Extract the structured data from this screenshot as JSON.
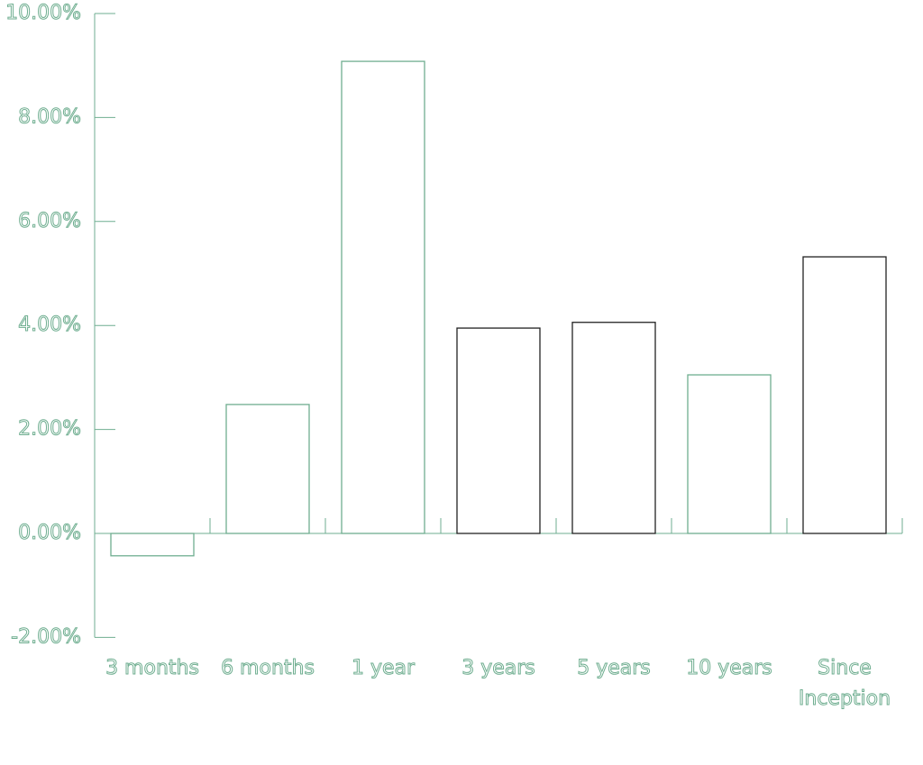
{
  "chart_data": {
    "type": "bar",
    "categories": [
      "3 months",
      "6 months",
      "1 year",
      "3 years",
      "5 years",
      "10 years",
      "Since Inception"
    ],
    "values": [
      -0.43,
      2.48,
      9.08,
      3.95,
      4.06,
      3.05,
      5.32
    ],
    "colors": [
      "#6fae90",
      "#6fae90",
      "#6fae90",
      "#222222",
      "#222222",
      "#6fae90",
      "#222222"
    ],
    "axis_color": "#6fae90",
    "ylim": [
      -2,
      10
    ],
    "yticks": [
      {
        "value": -2,
        "label": "-2.00%"
      },
      {
        "value": 0,
        "label": "0.00%"
      },
      {
        "value": 2,
        "label": "2.00%"
      },
      {
        "value": 4,
        "label": "4.00%"
      },
      {
        "value": 6,
        "label": "6.00%"
      },
      {
        "value": 8,
        "label": "8.00%"
      },
      {
        "value": 10,
        "label": "10.00%"
      }
    ]
  }
}
